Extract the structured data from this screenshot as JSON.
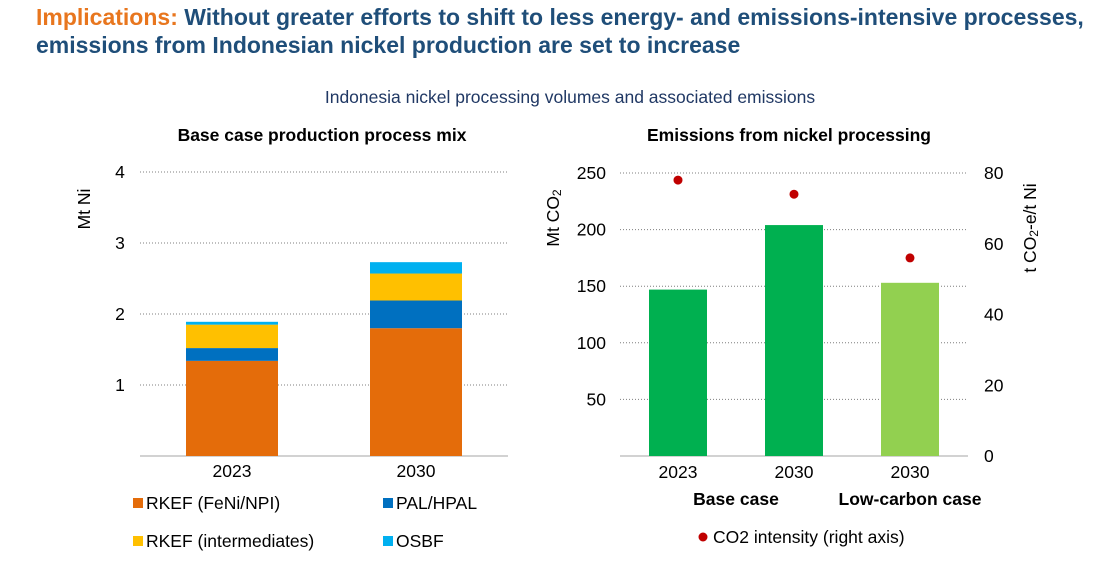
{
  "header": {
    "lead": "Implications:",
    "line1": "Without greater efforts to shift to less energy- and emissions-intensive processes,",
    "line2": "emissions from Indonesian nickel production are set to increase",
    "subtitle": "Indonesia nickel processing volumes and associated emissions",
    "colors": {
      "lead": "#E8761E",
      "title": "#1F4E79",
      "subtitle": "#203864"
    }
  },
  "chart_data": [
    {
      "type": "bar",
      "stacked": true,
      "title": "Base case production process mix",
      "ylabel": "Mt Ni",
      "ylim": [
        0,
        4
      ],
      "yticks": [
        1,
        2,
        3,
        4
      ],
      "grid": true,
      "legend": "bottom",
      "categories": [
        "2023",
        "2030"
      ],
      "series": [
        {
          "name": "RKEF (FeNi/NPI)",
          "color": "#E46C0A",
          "values": [
            1.34,
            1.8
          ]
        },
        {
          "name": "PAL/HPAL",
          "color": "#0070C0",
          "values": [
            0.18,
            0.39
          ]
        },
        {
          "name": "RKEF (intermediates)",
          "color": "#FFC000",
          "values": [
            0.33,
            0.38
          ]
        },
        {
          "name": "OSBF",
          "color": "#00B0F0",
          "values": [
            0.04,
            0.16
          ]
        }
      ]
    },
    {
      "type": "bar",
      "title": "Emissions from nickel processing",
      "ylabel": {
        "main": "Mt CO",
        "sub": "2"
      },
      "y2label": {
        "main": "t CO",
        "sub": "2",
        "tail": "-e/t Ni"
      },
      "ylim": [
        0,
        250
      ],
      "yticks": [
        50,
        100,
        150,
        200,
        250
      ],
      "y2lim": [
        0,
        80
      ],
      "y2ticks": [
        0,
        20,
        40,
        60,
        80
      ],
      "grid": true,
      "legend": "bottom",
      "categories": [
        "2023",
        "2030",
        "2030"
      ],
      "groups": [
        {
          "label": "Base case",
          "categories": [
            0,
            1
          ]
        },
        {
          "label": "Low-carbon case",
          "categories": [
            2
          ]
        }
      ],
      "series": [
        {
          "type": "bar",
          "axis": "left",
          "values": [
            147,
            204,
            153
          ],
          "colors": [
            "#00B050",
            "#00B050",
            "#92D050"
          ]
        },
        {
          "type": "scatter",
          "axis": "right",
          "name": "CO2 intensity (right axis)",
          "values": [
            78,
            74,
            56
          ],
          "color": "#C00000"
        }
      ]
    }
  ]
}
